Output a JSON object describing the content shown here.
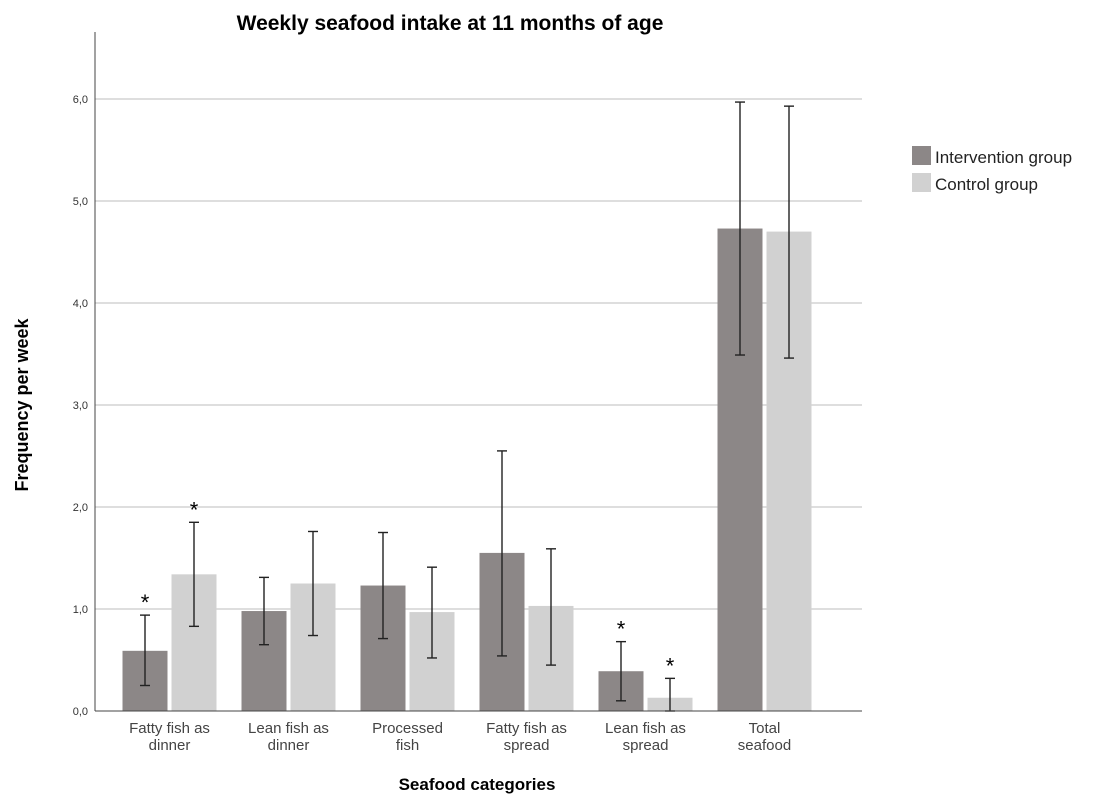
{
  "chart_data": {
    "type": "bar",
    "title": "Weekly seafood intake at 11 months of age",
    "xlabel": "Seafood categories",
    "ylabel": "Frequency per week",
    "ylim": [
      0,
      6.6
    ],
    "yticks": [
      0,
      1,
      2,
      3,
      4,
      5,
      6
    ],
    "ytick_labels": [
      "0,0",
      "1,0",
      "2,0",
      "3,0",
      "4,0",
      "5,0",
      "6,0"
    ],
    "categories": [
      [
        "Fatty fish as",
        "dinner"
      ],
      [
        "Lean fish as",
        "dinner"
      ],
      [
        "Processed",
        "fish"
      ],
      [
        "Fatty fish as",
        "spread"
      ],
      [
        "Lean fish as",
        "spread"
      ],
      [
        "Total",
        "seafood"
      ]
    ],
    "series": [
      {
        "name": "Intervention group",
        "color": "#8c8787",
        "values": [
          0.59,
          0.98,
          1.23,
          1.55,
          0.39,
          4.73
        ],
        "err_low": [
          0.25,
          0.65,
          0.71,
          0.54,
          0.1,
          3.49
        ],
        "err_high": [
          0.94,
          1.31,
          1.75,
          2.55,
          0.68,
          5.97
        ],
        "significant": [
          true,
          false,
          false,
          false,
          true,
          false
        ]
      },
      {
        "name": "Control group",
        "color": "#d1d1d1",
        "values": [
          1.34,
          1.25,
          0.97,
          1.03,
          0.13,
          4.7
        ],
        "err_low": [
          0.83,
          0.74,
          0.52,
          0.45,
          0.0,
          3.46
        ],
        "err_high": [
          1.85,
          1.76,
          1.41,
          1.59,
          0.32,
          5.93
        ],
        "significant": [
          true,
          false,
          false,
          false,
          true,
          false
        ]
      }
    ],
    "significance_marker": "*",
    "grid": true,
    "legend_position": "right"
  }
}
